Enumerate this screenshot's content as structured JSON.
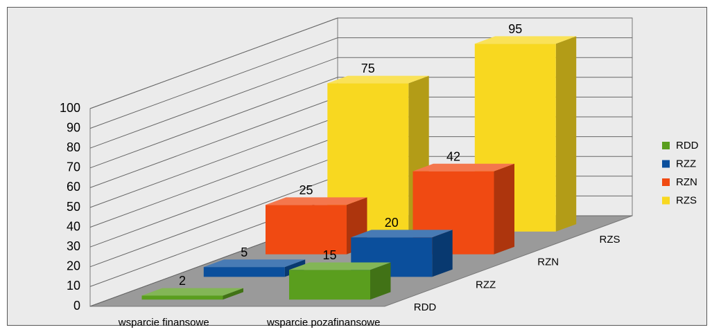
{
  "chart_data": {
    "type": "bar",
    "three_d": true,
    "categories": [
      "wsparcie finansowe",
      "wsparcie pozafinansowe"
    ],
    "series": [
      {
        "name": "RDD",
        "color": "#5a9e1e",
        "values": [
          2,
          15
        ]
      },
      {
        "name": "RZZ",
        "color": "#0b4f9c",
        "values": [
          5,
          20
        ]
      },
      {
        "name": "RZN",
        "color": "#f04a12",
        "values": [
          25,
          42
        ]
      },
      {
        "name": "RZS",
        "color": "#f8d820",
        "values": [
          75,
          95
        ]
      }
    ],
    "ylim": [
      0,
      100
    ],
    "yticks": [
      0,
      10,
      20,
      30,
      40,
      50,
      60,
      70,
      80,
      90,
      100
    ],
    "grid": true,
    "legend": "right"
  }
}
